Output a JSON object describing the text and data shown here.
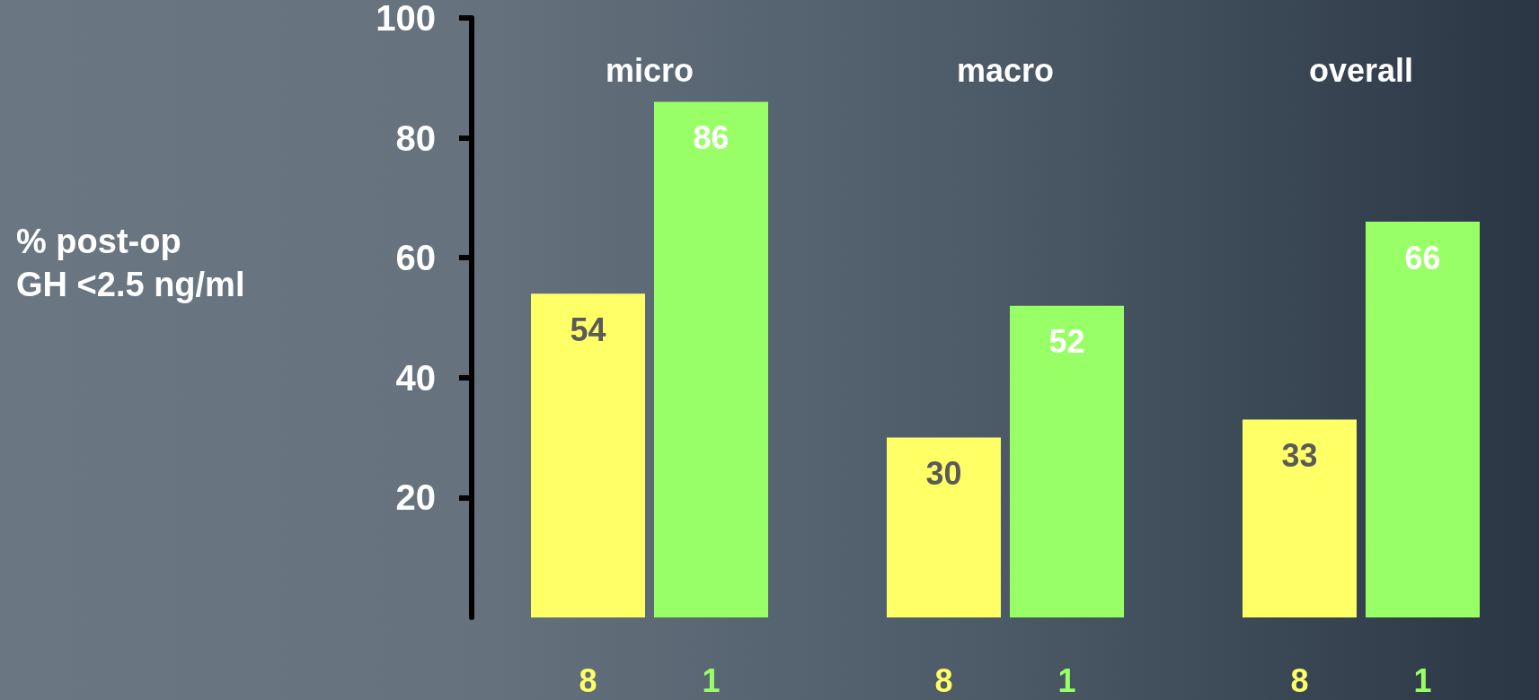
{
  "chart_data": {
    "type": "bar",
    "ylabel": "% post-op\nGH <2.5 ng/ml",
    "categories": [
      "micro",
      "macro",
      "overall"
    ],
    "series": [
      {
        "name": "8",
        "color": "#ffff66",
        "values": [
          54,
          30,
          33
        ]
      },
      {
        "name": "1",
        "color": "#99ff66",
        "values": [
          86,
          52,
          66
        ]
      }
    ],
    "ylim": [
      0,
      100
    ],
    "yticks": [
      20,
      40,
      60,
      80,
      100
    ],
    "data_labels": true,
    "grid": false,
    "legend": false
  }
}
